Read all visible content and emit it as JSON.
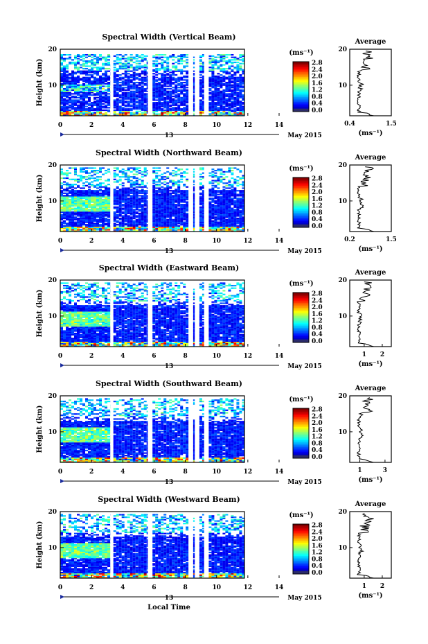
{
  "figure": {
    "x_label": "Local Time",
    "date_left": "13",
    "date_right": "May 2015",
    "x_ticks": [
      "0",
      "2",
      "4",
      "6",
      "8",
      "10",
      "12",
      "14"
    ],
    "y_label": "Height (km)",
    "y_ticks": [
      "10",
      "20"
    ],
    "colorbar_unit": "(ms⁻¹)",
    "colorbar_ticks": [
      "0.0",
      "0.4",
      "0.8",
      "1.2",
      "1.6",
      "2.0",
      "2.4",
      "2.8"
    ],
    "average_title": "Average",
    "average_unit": "(ms⁻¹)"
  },
  "chart_data": [
    {
      "type": "heatmap",
      "title": "Spectral Width (Vertical Beam)",
      "xlabel": "Local Time",
      "ylabel": "Height (km)",
      "xlim": [
        0,
        14
      ],
      "ylim": [
        1.5,
        20
      ],
      "colorbar": {
        "label": "(ms⁻¹)",
        "range": [
          0.0,
          2.8
        ]
      },
      "data_columns_hours": [
        [
          0,
          3.2
        ],
        [
          3.4,
          5.6
        ],
        [
          5.9,
          8.2
        ],
        [
          8.5,
          8.6
        ],
        [
          8.9,
          9.2
        ],
        [
          9.5,
          11.8
        ]
      ],
      "average_profile": {
        "xlabel": "(ms⁻¹)",
        "xticks": [
          "0.4",
          "1.5"
        ],
        "xlim": [
          0.4,
          1.5
        ],
        "ylim": [
          1.5,
          20
        ],
        "yticks": [
          "10",
          "20"
        ]
      }
    },
    {
      "type": "heatmap",
      "title": "Spectral Width (Northward Beam)",
      "xlabel": "Local Time",
      "ylabel": "Height (km)",
      "xlim": [
        0,
        14
      ],
      "ylim": [
        1.5,
        20
      ],
      "colorbar": {
        "label": "(ms⁻¹)",
        "range": [
          0.0,
          2.8
        ]
      },
      "data_columns_hours": [
        [
          0,
          3.2
        ],
        [
          3.4,
          5.6
        ],
        [
          5.9,
          8.2
        ],
        [
          8.5,
          8.6
        ],
        [
          8.9,
          9.2
        ],
        [
          9.5,
          11.8
        ]
      ],
      "average_profile": {
        "xlabel": "(ms⁻¹)",
        "xticks": [
          "0.2",
          "1.5"
        ],
        "xlim": [
          0.2,
          1.5
        ],
        "ylim": [
          1.5,
          20
        ],
        "yticks": [
          "10",
          "20"
        ]
      }
    },
    {
      "type": "heatmap",
      "title": "Spectral Width (Eastward Beam)",
      "xlabel": "Local Time",
      "ylabel": "Height (km)",
      "xlim": [
        0,
        14
      ],
      "ylim": [
        1.5,
        20
      ],
      "colorbar": {
        "label": "(ms⁻¹)",
        "range": [
          0.0,
          2.8
        ]
      },
      "data_columns_hours": [
        [
          0,
          3.2
        ],
        [
          3.4,
          5.6
        ],
        [
          5.9,
          8.2
        ],
        [
          8.5,
          8.6
        ],
        [
          8.9,
          9.2
        ],
        [
          9.5,
          11.8
        ]
      ],
      "average_profile": {
        "xlabel": "(ms⁻¹)",
        "xticks": [
          "1",
          "2"
        ],
        "xlim": [
          0.2,
          2.5
        ],
        "ylim": [
          1.5,
          20
        ],
        "yticks": [
          "10",
          "20"
        ]
      }
    },
    {
      "type": "heatmap",
      "title": "Spectral Width (Southward Beam)",
      "xlabel": "Local Time",
      "ylabel": "Height (km)",
      "xlim": [
        0,
        14
      ],
      "ylim": [
        1.5,
        20
      ],
      "colorbar": {
        "label": "(ms⁻¹)",
        "range": [
          0.0,
          2.8
        ]
      },
      "data_columns_hours": [
        [
          0,
          3.2
        ],
        [
          3.4,
          5.6
        ],
        [
          5.9,
          8.2
        ],
        [
          8.5,
          8.6
        ],
        [
          8.9,
          9.2
        ],
        [
          9.5,
          11.8
        ]
      ],
      "average_profile": {
        "xlabel": "(ms⁻¹)",
        "xticks": [
          "1",
          "3"
        ],
        "xlim": [
          0.2,
          3.5
        ],
        "ylim": [
          1.5,
          20
        ],
        "yticks": [
          "10",
          "20"
        ]
      }
    },
    {
      "type": "heatmap",
      "title": "Spectral Width (Westward Beam)",
      "xlabel": "Local Time",
      "ylabel": "Height (km)",
      "xlim": [
        0,
        14
      ],
      "ylim": [
        1.5,
        20
      ],
      "colorbar": {
        "label": "(ms⁻¹)",
        "range": [
          0.0,
          2.8
        ]
      },
      "data_columns_hours": [
        [
          0,
          3.2
        ],
        [
          3.4,
          5.6
        ],
        [
          5.9,
          8.2
        ],
        [
          8.5,
          8.6
        ],
        [
          8.9,
          9.2
        ],
        [
          9.5,
          11.8
        ]
      ],
      "average_profile": {
        "xlabel": "(ms⁻¹)",
        "xticks": [
          "1",
          "2"
        ],
        "xlim": [
          0.2,
          2.5
        ],
        "ylim": [
          1.5,
          20
        ],
        "yticks": [
          "10",
          "20"
        ]
      }
    }
  ]
}
